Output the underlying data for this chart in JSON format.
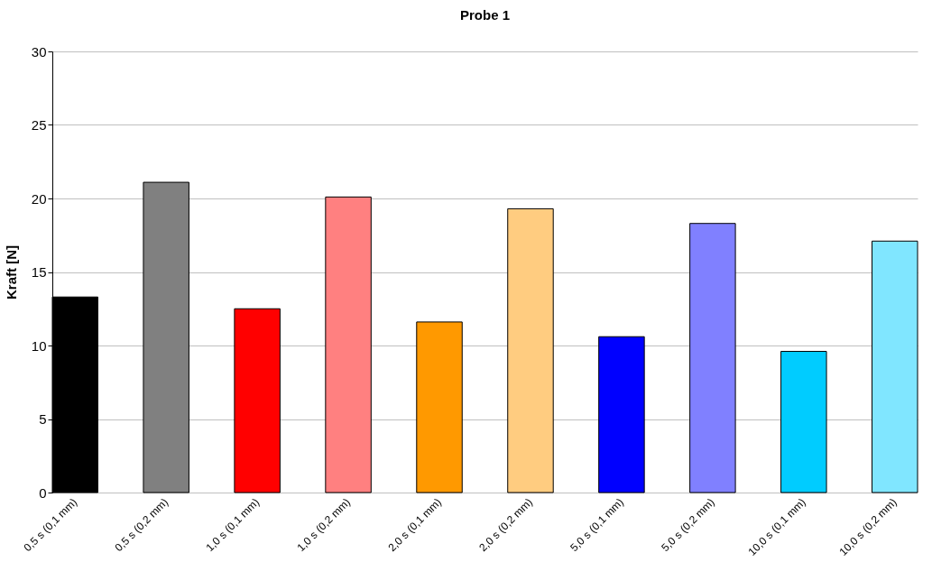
{
  "chart_data": {
    "type": "bar",
    "title": "Probe 1",
    "ylabel": "Kraft [N]",
    "categories": [
      "0,5 s (0,1 mm)",
      "0,5 s (0,2 mm)",
      "1,0 s (0,1 mm)",
      "1,0 s (0,2 mm)",
      "2,0 s (0,1 mm)",
      "2,0 s (0,2 mm)",
      "5,0 s (0,1 mm)",
      "5,0 s (0,2 mm)",
      "10,0 s (0,1 mm)",
      "10,0 s (0,2 mm)"
    ],
    "values": [
      13.3,
      21.1,
      12.5,
      20.1,
      11.6,
      19.3,
      10.6,
      18.3,
      9.6,
      17.1
    ],
    "colors": [
      "#000000",
      "#808080",
      "#ff0000",
      "#ff8080",
      "#ff9900",
      "#ffcc80",
      "#0000ff",
      "#8080ff",
      "#00ccff",
      "#80e6ff"
    ],
    "ylim": [
      0,
      30
    ],
    "yticks": [
      0,
      5,
      10,
      15,
      20,
      25,
      30
    ],
    "grid": "y",
    "legend": false
  }
}
